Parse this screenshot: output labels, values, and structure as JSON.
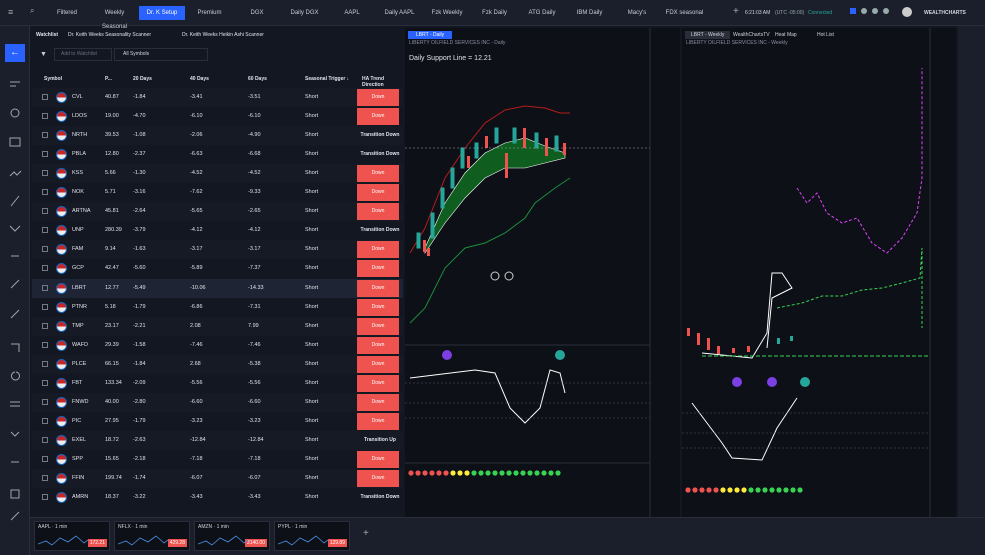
{
  "tabs": [
    "Filtered",
    "Weekly Seasonal",
    "Dr. K Setup",
    "Premium",
    "DGX",
    "Daily DGX",
    "AAPL",
    "Daily AAPL",
    "Fzk Weekly",
    "Fzk Daily",
    "ATG Daily",
    "IBM Daily",
    "Macy's",
    "FDX seasonal"
  ],
  "active_tab": 2,
  "status": {
    "time": "6:21:03 AM",
    "timezone": "(UTC -05:00)",
    "connection": "Connected",
    "brand": "WEALTHCHARTS"
  },
  "watchlist": {
    "label": "Watchlist",
    "scanners": [
      "Dr. Keith Weeks Seasonality Scanner",
      "Dr. Keith Weeks Heikin Ashi Scanner"
    ],
    "add_button": "Add to Watchlist",
    "filter": "All Symbols"
  },
  "table": {
    "columns": [
      "Symbol",
      "P...",
      "20 Days",
      "40 Days",
      "60 Days",
      "Seasonal Trigger ↓",
      "HA Trend Direction"
    ],
    "rows": [
      [
        "CVL",
        "40.87",
        "-1.84",
        "-3.41",
        "-3.51",
        "Short",
        "Down"
      ],
      [
        "LDOS",
        "19.00",
        "-4.70",
        "-6.10",
        "-6.10",
        "Short",
        "Down"
      ],
      [
        "NRTH",
        "39.53",
        "-1.08",
        "-2.06",
        "-4.90",
        "Short",
        "Transition Down"
      ],
      [
        "PBLA",
        "12.80",
        "-2.37",
        "-6.63",
        "-6.68",
        "Short",
        "Transition Down"
      ],
      [
        "KSS",
        "5.66",
        "-1.30",
        "-4.52",
        "-4.52",
        "Short",
        "Down"
      ],
      [
        "NOK",
        "5.71",
        "-3.16",
        "-7.62",
        "-9.33",
        "Short",
        "Down"
      ],
      [
        "ARTNA",
        "45.81",
        "-2.64",
        "-5.65",
        "-2.65",
        "Short",
        "Down"
      ],
      [
        "UNP",
        "280.39",
        "-3.79",
        "-4.12",
        "-4.12",
        "Short",
        "Transition Down"
      ],
      [
        "FAM",
        "9.14",
        "-1.63",
        "-3.17",
        "-3.17",
        "Short",
        "Down"
      ],
      [
        "GCP",
        "42.47",
        "-5.60",
        "-5.89",
        "-7.37",
        "Short",
        "Down"
      ],
      [
        "LBRT",
        "12.77",
        "-5.49",
        "-10.06",
        "-14.33",
        "Short",
        "Down"
      ],
      [
        "PTNR",
        "5.18",
        "-1.79",
        "-6.86",
        "-7.31",
        "Short",
        "Down"
      ],
      [
        "TMP",
        "23.17",
        "-2.21",
        "2.08",
        "7.99",
        "Short",
        "Down"
      ],
      [
        "WAFD",
        "29.39",
        "-1.58",
        "-7.46",
        "-7.46",
        "Short",
        "Down"
      ],
      [
        "PLCE",
        "66.15",
        "-1.84",
        "2.68",
        "-5.38",
        "Short",
        "Down"
      ],
      [
        "FBT",
        "133.34",
        "-2.09",
        "-5.56",
        "-5.56",
        "Short",
        "Down"
      ],
      [
        "FNWD",
        "40.00",
        "-2.80",
        "-6.60",
        "-6.60",
        "Short",
        "Down"
      ],
      [
        "PIC",
        "27.95",
        "-1.79",
        "-3.23",
        "-3.23",
        "Short",
        "Down"
      ],
      [
        "EXEL",
        "18.72",
        "-2.63",
        "-12.84",
        "-12.84",
        "Short",
        "Transition Up"
      ],
      [
        "SPP",
        "15.65",
        "-2.18",
        "-7.18",
        "-7.18",
        "Short",
        "Down"
      ],
      [
        "FFIN",
        "199.74",
        "-1.74",
        "-6.07",
        "-6.07",
        "Short",
        "Down"
      ],
      [
        "AMRN",
        "18.37",
        "-3.22",
        "-3.43",
        "-3.43",
        "Short",
        "Transition Down"
      ]
    ]
  },
  "daily_chart": {
    "tab": "LBRT - Daily",
    "title": "LIBERTY OILFIELD SERVICES INC - Daily",
    "support": "Daily Support Line = 12.21"
  },
  "weekly_chart": {
    "tabs": [
      "LBRT - Weekly",
      "WealthChartsTV",
      "Heat Map",
      "Hot List"
    ],
    "title": "LIBERTY OILFIELD SERVICES INC - Weekly"
  },
  "minis": [
    {
      "label": "AAPL · 1 min",
      "price": "172.21"
    },
    {
      "label": "NFLX · 1 min",
      "price": "429.28"
    },
    {
      "label": "AMZN · 1 min",
      "price": "3140.00"
    },
    {
      "label": "PYPL · 1 min",
      "price": "129.89"
    }
  ]
}
